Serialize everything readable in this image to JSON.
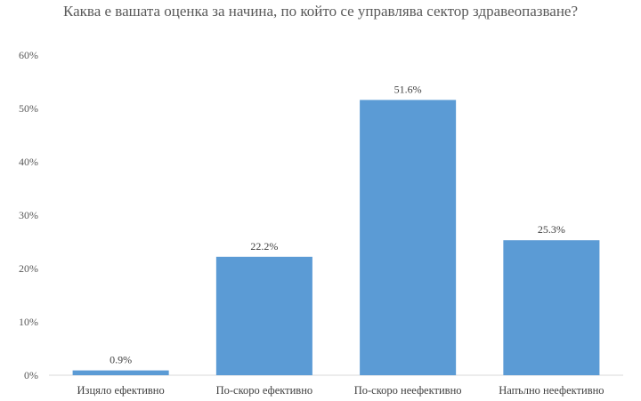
{
  "chart_data": {
    "type": "bar",
    "title": "Каква е вашата оценка за начина, по който се управлява сектор здравеопазване?",
    "categories": [
      "Изцяло ефективно",
      "По-скоро ефективно",
      "По-скоро неефективно",
      "Напълно неефективно"
    ],
    "values": [
      0.9,
      22.2,
      51.6,
      25.3
    ],
    "data_labels": [
      "0.9%",
      "22.2%",
      "51.6%",
      "25.3%"
    ],
    "xlabel": "",
    "ylabel": "",
    "ylim": [
      0,
      60
    ],
    "yticks": [
      "0%",
      "10%",
      "20%",
      "30%",
      "40%",
      "50%",
      "60%"
    ],
    "grid": false,
    "bar_color": "#5b9bd5",
    "axis_color": "#d9d9d9"
  }
}
